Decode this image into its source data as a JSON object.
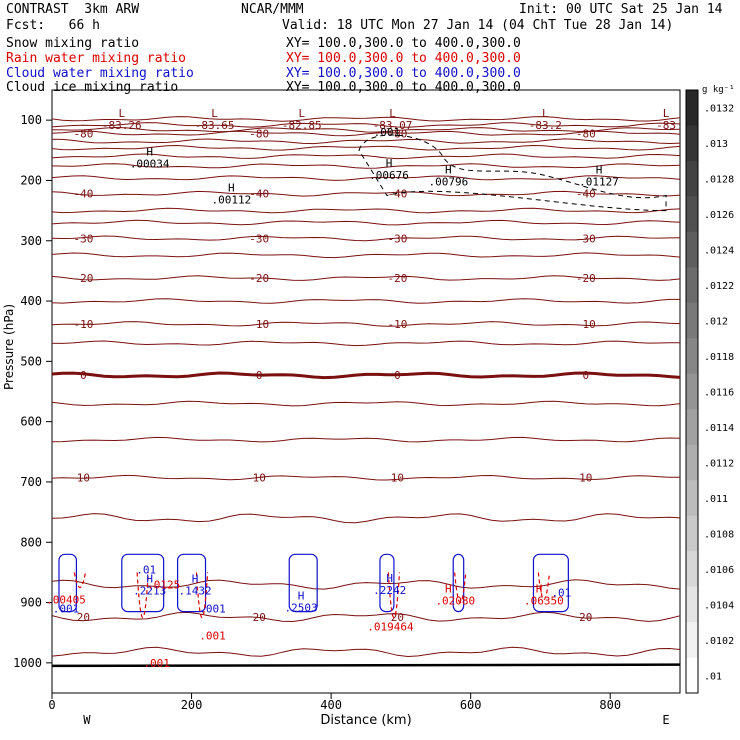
{
  "header": {
    "left1": "CONTRAST  3km ARW",
    "left2": "Fcst:   66 h",
    "center1": "NCAR/MMM",
    "right1": "Init: 00 UTC Sat 25 Jan 14",
    "right2": "Valid: 18 UTC Mon 27 Jan 14 (04 ChT Tue 28 Jan 14)"
  },
  "fields": [
    {
      "name": "Snow mixing ratio",
      "xy": "XY= 100.0,300.0 to 400.0,300.0",
      "color": "#000000",
      "xycolor": "#000000"
    },
    {
      "name": "Rain water mixing ratio",
      "xy": "XY= 100.0,300.0 to 400.0,300.0",
      "color": "#dd0000",
      "xycolor": "#dd0000"
    },
    {
      "name": "Cloud water mixing ratio",
      "xy": "XY= 100.0,300.0 to 400.0,300.0",
      "color": "#1010cc",
      "xycolor": "#1010cc"
    },
    {
      "name": "Cloud ice mixing ratio",
      "xy": "XY= 100.0,300.0 to 400.0,300.0",
      "color": "#000000",
      "xycolor": "#000000"
    }
  ],
  "chart_data": {
    "type": "contour",
    "xlabel": "Distance (km)",
    "ylabel": "Pressure (hPa)",
    "xticks": [
      0,
      200,
      400,
      600,
      800
    ],
    "yticks": [
      100,
      200,
      300,
      400,
      500,
      600,
      700,
      800,
      900,
      1000
    ],
    "xlim": [
      0,
      900
    ],
    "ylim": [
      1050,
      50
    ],
    "x_end_labels": {
      "left": "W",
      "right": "E"
    },
    "colorbar": {
      "unit": "g kg⁻¹",
      "ticks": [
        ".0132",
        ".013",
        ".0128",
        ".0126",
        ".0124",
        ".0122",
        ".012",
        ".0118",
        ".0116",
        ".0114",
        ".0112",
        ".011",
        ".0108",
        ".0106",
        ".0104",
        ".0102",
        ".01"
      ]
    },
    "temperature_contours": [
      {
        "label": "-80",
        "pressure": 122
      },
      {
        "label": "-40",
        "pressure": 222
      },
      {
        "label": "-30",
        "pressure": 296
      },
      {
        "label": "-20",
        "pressure": 362
      },
      {
        "label": "-10",
        "pressure": 438
      },
      {
        "label": "0",
        "pressure": 523
      },
      {
        "label": "10",
        "pressure": 693
      },
      {
        "label": "20",
        "pressure": 924
      }
    ],
    "extrema": [
      {
        "kind": "L",
        "value": "-83.26",
        "x": 100,
        "p": 98
      },
      {
        "kind": "L",
        "value": "-83.65",
        "x": 233,
        "p": 98
      },
      {
        "kind": "L",
        "value": "-82.85",
        "x": 358,
        "p": 98
      },
      {
        "kind": "L",
        "value": "-83.07",
        "x": 488,
        "p": 98
      },
      {
        "kind": "L",
        "value": "-83.2",
        "x": 707,
        "p": 98
      },
      {
        "kind": "L",
        "value": "-83",
        "x": 880,
        "p": 98
      },
      {
        "kind": "H",
        "value": ".00034",
        "x": 140,
        "p": 162
      },
      {
        "kind": "H",
        "value": ".00112",
        "x": 257,
        "p": 222
      },
      {
        "kind": "H",
        "value": ".00676",
        "x": 483,
        "p": 181
      },
      {
        "kind": "H",
        "value": ".00796",
        "x": 568,
        "p": 192
      },
      {
        "kind": "H",
        "value": ".01127",
        "x": 784,
        "p": 192
      },
      {
        "kind": "H",
        "value": ".2242",
        "x": 484,
        "p": 869
      },
      {
        "kind": "H",
        "value": ".2503",
        "x": 357,
        "p": 898
      },
      {
        "kind": "H",
        "value": ".2213",
        "x": 140,
        "p": 870
      },
      {
        "kind": "H",
        "value": ".1432",
        "x": 205,
        "p": 870
      }
    ],
    "contour_labels": [
      {
        "text": ".001",
        "color": "#000000",
        "x": 480,
        "p": 120
      },
      {
        "text": ".00405",
        "color": "#dd0000",
        "x": 20,
        "p": 895
      },
      {
        "text": ".001",
        "color": "#1010cc",
        "x": 20,
        "p": 910
      },
      {
        "text": ".001",
        "color": "#1010cc",
        "x": 230,
        "p": 910
      },
      {
        "text": ".001",
        "color": "#dd0000",
        "x": 230,
        "p": 955
      },
      {
        "text": ".001",
        "color": "#dd0000",
        "x": 150,
        "p": 1000
      },
      {
        "text": ".01",
        "color": "#1010cc",
        "x": 135,
        "p": 845
      },
      {
        "text": ".0125",
        "color": "#dd0000",
        "x": 160,
        "p": 870
      },
      {
        "text": ".019464",
        "color": "#dd0000",
        "x": 485,
        "p": 940
      },
      {
        "text": ".02080",
        "color": "#dd0000",
        "x": 578,
        "p": 897
      },
      {
        "text": ".06350",
        "color": "#dd0000",
        "x": 705,
        "p": 897
      },
      {
        "text": ".01",
        "color": "#1010cc",
        "x": 730,
        "p": 883
      },
      {
        "text": "H",
        "color": "#dd0000",
        "x": 568,
        "p": 877
      },
      {
        "text": "H",
        "color": "#dd0000",
        "x": 698,
        "p": 877
      }
    ]
  }
}
